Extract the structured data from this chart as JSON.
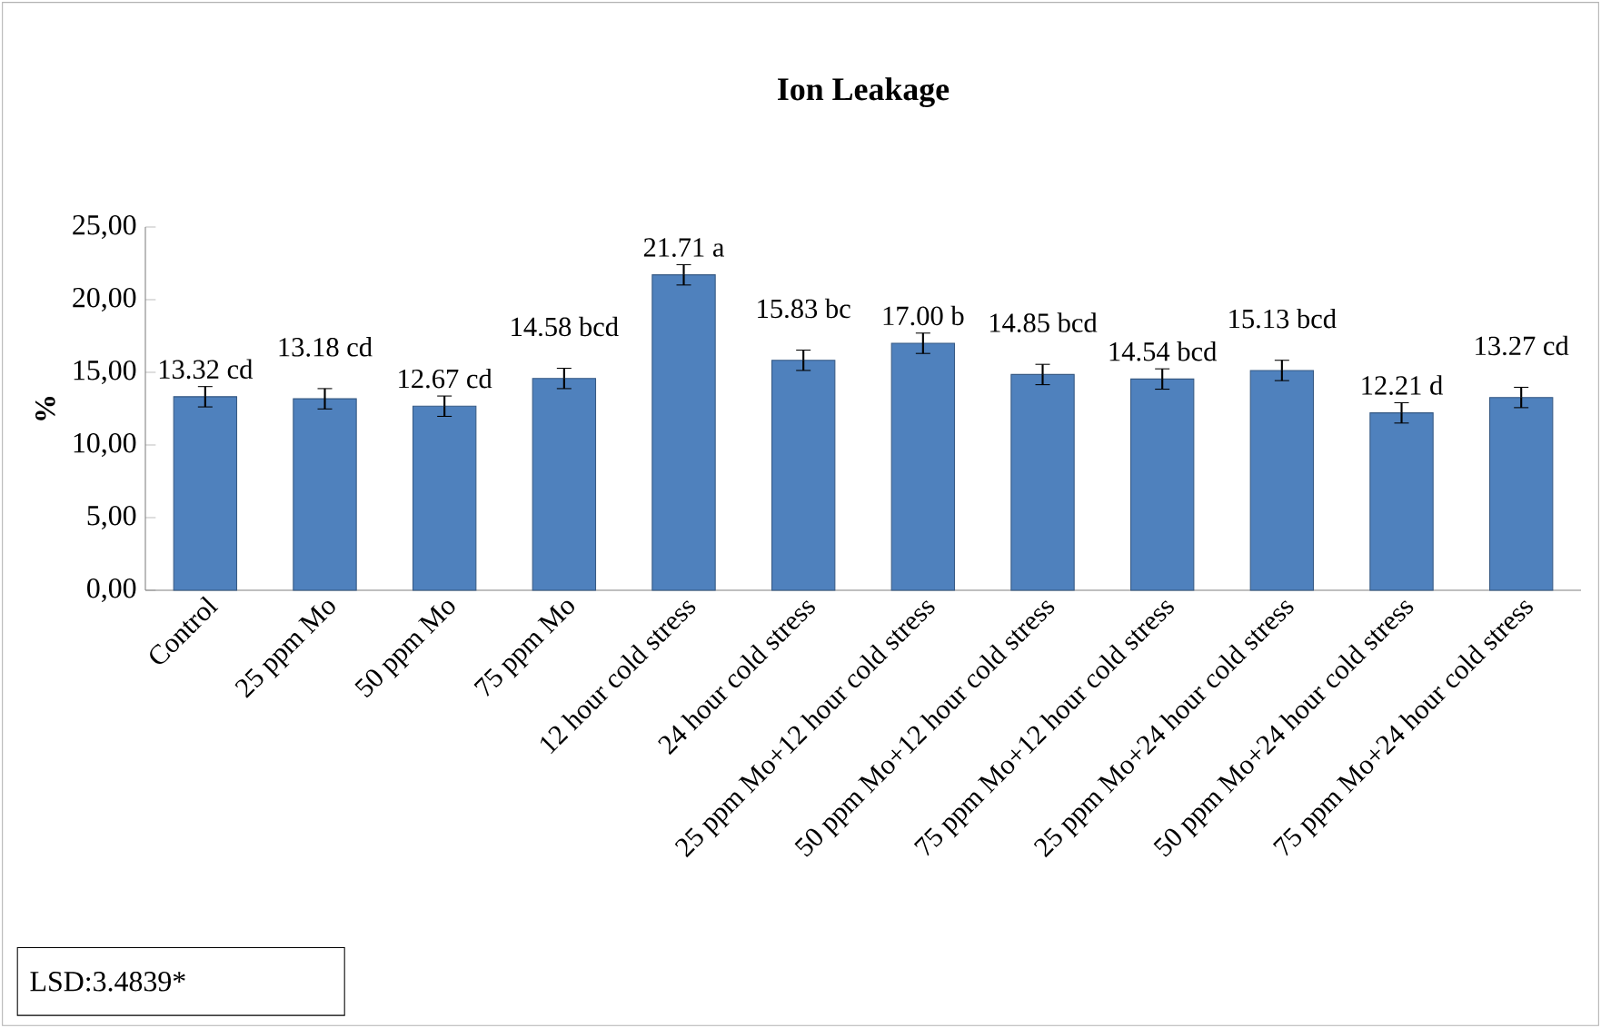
{
  "chart_data": {
    "type": "bar",
    "title": "Ion Leakage",
    "ylabel": "%",
    "categories": [
      "Control",
      "25 ppm Mo",
      "50 ppm Mo",
      "75 ppm Mo",
      "12 hour cold stress",
      "24 hour cold stress",
      "25 ppm Mo+12 hour cold stress",
      "50 ppm Mo+12 hour cold stress",
      "75 ppm Mo+12 hour cold stress",
      "25 ppm Mo+24 hour cold stress",
      "50 ppm Mo+24 hour cold stress",
      "75 ppm Mo+24 hour cold stress"
    ],
    "values": [
      13.32,
      13.18,
      12.67,
      14.58,
      21.71,
      15.83,
      17.0,
      14.85,
      14.54,
      15.13,
      12.21,
      13.27
    ],
    "errors": [
      0.7,
      0.7,
      0.7,
      0.7,
      0.7,
      0.7,
      0.7,
      0.7,
      0.7,
      0.7,
      0.7,
      0.7
    ],
    "value_labels": [
      "13.32 cd",
      "13.18 cd",
      "12.67 cd",
      "14.58 bcd",
      "21.71 a",
      "15.83 bc",
      "17.00 b",
      "14.85 bcd",
      "14.54 bcd",
      "15.13 bcd",
      "12.21 d",
      "13.27 cd"
    ],
    "color": "#4f81bd",
    "ylim": [
      0,
      25
    ],
    "yticks": [
      {
        "value": 0,
        "label": "0,00"
      },
      {
        "value": 5,
        "label": "5,00"
      },
      {
        "value": 10,
        "label": "10,00"
      },
      {
        "value": 15,
        "label": "15,00"
      },
      {
        "value": 20,
        "label": "20,00"
      },
      {
        "value": 25,
        "label": "25,00"
      }
    ],
    "grid": false,
    "annotations": [
      "LSD:3.4839*"
    ]
  }
}
